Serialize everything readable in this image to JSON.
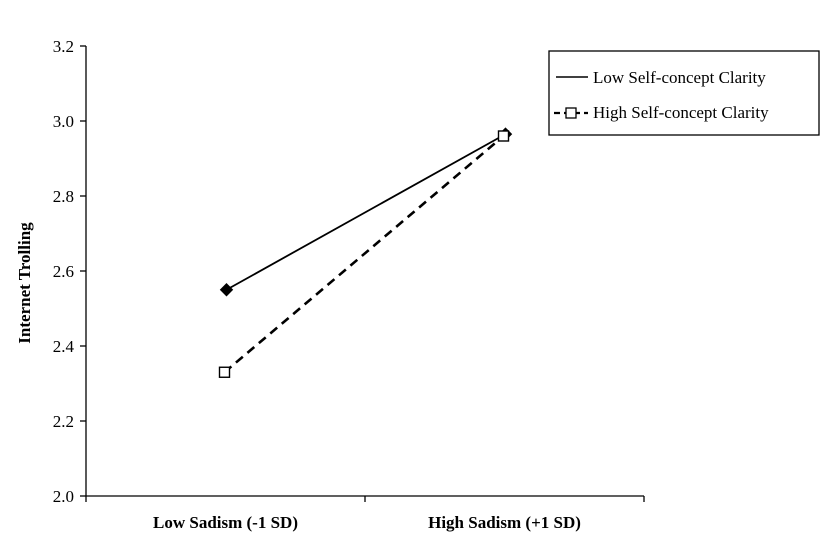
{
  "chart_data": {
    "type": "line",
    "title": "",
    "xlabel": "",
    "ylabel": "Internet Trolling",
    "categories": [
      "Low Sadism (-1 SD)",
      "High Sadism (+1 SD)"
    ],
    "ylim": [
      2.0,
      3.2
    ],
    "yticks": [
      "2.0",
      "2.2",
      "2.4",
      "2.6",
      "2.8",
      "3.0",
      "3.2"
    ],
    "grid": false,
    "legend_position": "top-right",
    "series": [
      {
        "name": "Low Self-concept Clarity",
        "values": [
          2.55,
          2.965
        ],
        "line": "solid",
        "marker": "filled-diamond",
        "color": "#000000"
      },
      {
        "name": "High Self-concept Clarity",
        "values": [
          2.33,
          2.96
        ],
        "line": "dashed",
        "marker": "open-square",
        "color": "#000000"
      }
    ]
  }
}
